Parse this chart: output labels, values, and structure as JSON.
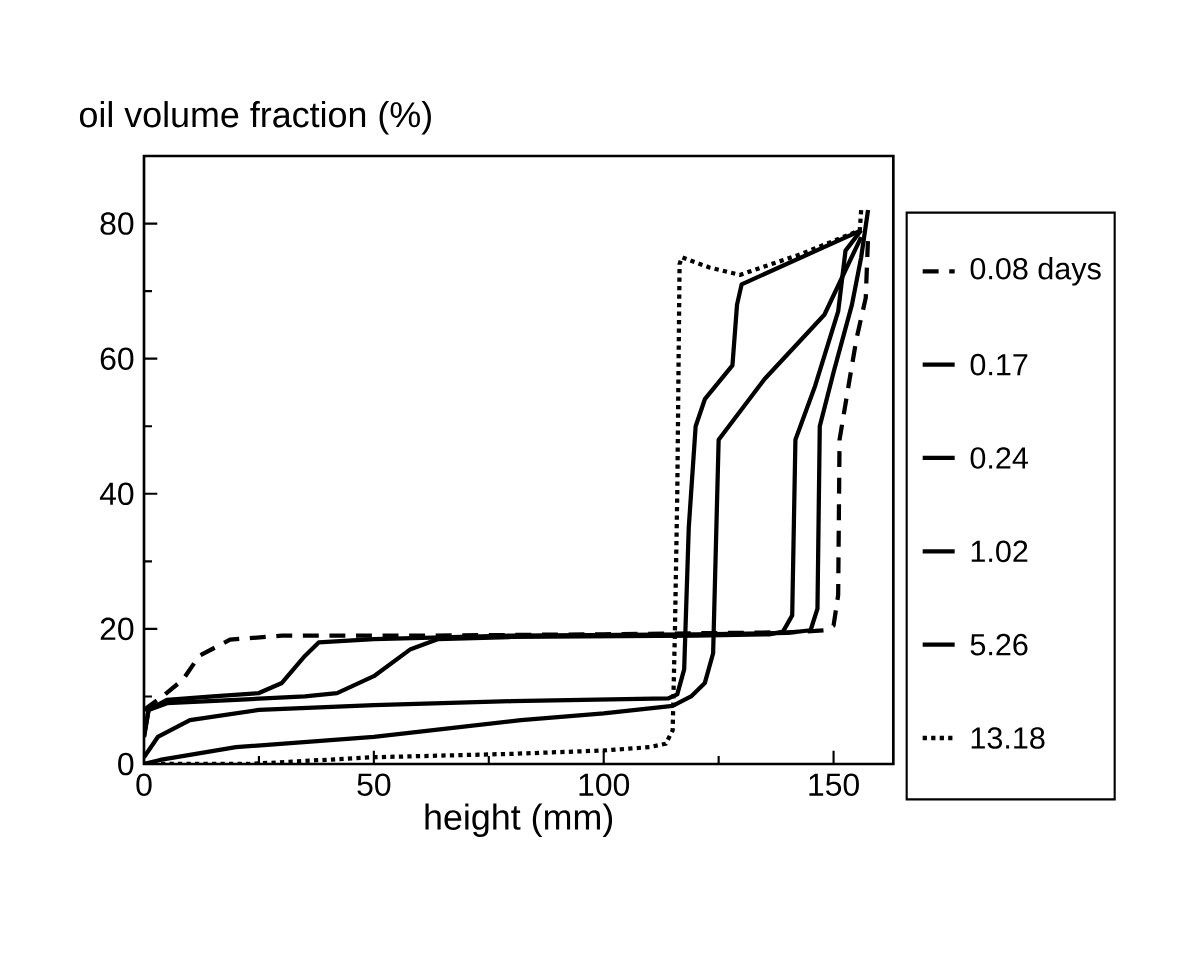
{
  "chart_data": {
    "type": "line",
    "xlabel": "height (mm)",
    "ylabel": "oil volume fraction (%)",
    "xlim": [
      0,
      163
    ],
    "ylim": [
      0,
      90
    ],
    "xticks": [
      0,
      50,
      100,
      150
    ],
    "yticks": [
      0,
      20,
      40,
      60,
      80
    ],
    "legend": "right",
    "series": [
      {
        "name": "0.08 days",
        "color": "#000000",
        "line_style": "dashed",
        "x": [
          0,
          4,
          8.5,
          12,
          18.7,
          30,
          60,
          100,
          140,
          146,
          148,
          150,
          151,
          151.3,
          153.5,
          155,
          157,
          157.5
        ],
        "values": [
          8,
          10,
          12.5,
          16,
          18.4,
          19,
          19,
          19.2,
          19.5,
          19.7,
          19.8,
          20.5,
          25,
          48,
          57,
          63,
          69,
          78
        ]
      },
      {
        "name": "0.17",
        "color": "#000000",
        "line_style": "solid",
        "x": [
          0,
          1,
          5,
          15,
          25,
          30,
          35,
          38,
          50,
          80,
          120,
          140,
          145,
          146.5,
          147,
          150,
          154,
          156,
          157.5
        ],
        "values": [
          4,
          8,
          9.5,
          10,
          10.5,
          12,
          16,
          18,
          18.5,
          19,
          19.2,
          19.4,
          19.8,
          23,
          50,
          58,
          68,
          75,
          82
        ]
      },
      {
        "name": "0.24",
        "color": "#000000",
        "line_style": "solid",
        "x": [
          0,
          1,
          5,
          20,
          35,
          42,
          50,
          58,
          64,
          80,
          120,
          136,
          139,
          141,
          141.7,
          146,
          151,
          152.6,
          156
        ],
        "values": [
          4,
          8,
          9,
          9.5,
          10,
          10.5,
          13,
          17,
          18.5,
          18.8,
          19,
          19.2,
          19.6,
          22,
          48,
          56,
          67,
          76,
          79
        ]
      },
      {
        "name": "1.02",
        "color": "#000000",
        "line_style": "solid",
        "x": [
          0,
          3.5,
          20,
          50,
          82,
          100,
          115,
          119,
          122,
          123.8,
          125,
          135,
          148,
          156
        ],
        "values": [
          0,
          0.6,
          2.5,
          4,
          6.5,
          7.5,
          8.6,
          10,
          12,
          16.4,
          48,
          57,
          66.5,
          78
        ]
      },
      {
        "name": "5.26",
        "color": "#000000",
        "line_style": "solid",
        "x": [
          0,
          3,
          10,
          25,
          50,
          80,
          114,
          116,
          117.5,
          118.5,
          120,
          122,
          128,
          129,
          130,
          143,
          156
        ],
        "values": [
          1,
          4,
          6.5,
          8,
          8.7,
          9.3,
          9.7,
          10.3,
          14,
          35,
          50,
          54,
          59,
          68,
          71,
          75,
          79
        ]
      },
      {
        "name": "13.18",
        "color": "#000000",
        "line_style": "dotted",
        "x": [
          0,
          22.7,
          50,
          80,
          100,
          110,
          113.5,
          115,
          115.5,
          116,
          116.5,
          117,
          123,
          129.6,
          143,
          155.7,
          156
        ],
        "values": [
          0,
          0,
          1,
          1.5,
          2,
          2.5,
          3,
          5,
          20,
          40,
          74,
          75,
          73.5,
          72.4,
          75.5,
          79,
          82
        ]
      }
    ]
  }
}
